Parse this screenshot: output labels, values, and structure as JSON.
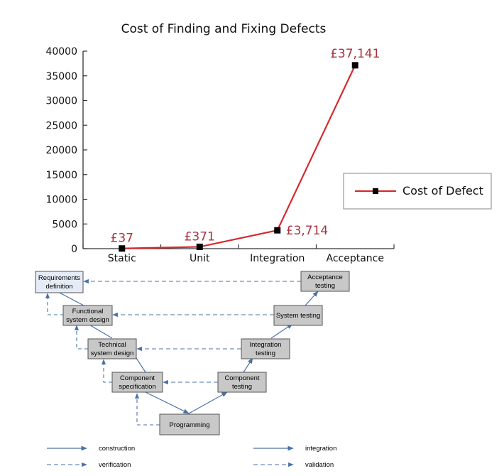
{
  "chart_data": {
    "type": "line",
    "title": "Cost of Finding and Fixing Defects",
    "categories": [
      "Static",
      "Unit",
      "Integration",
      "Acceptance"
    ],
    "series": [
      {
        "name": "Cost of Defect",
        "values": [
          37,
          371,
          3714,
          37141
        ],
        "labels": [
          "£37",
          "£371",
          "£3,714",
          "£37,141"
        ]
      }
    ],
    "ylim": [
      0,
      40000
    ],
    "yticks": [
      0,
      5000,
      10000,
      15000,
      20000,
      25000,
      30000,
      35000,
      40000
    ],
    "legend": "right",
    "grid": false,
    "color": "#d42a2e"
  },
  "v_model": {
    "left_boxes": [
      {
        "line1": "Requirements",
        "line2": "definition"
      },
      {
        "line1": "Functional",
        "line2": "system design"
      },
      {
        "line1": "Technical",
        "line2": "system design"
      },
      {
        "line1": "Component",
        "line2": "specification"
      }
    ],
    "right_boxes": [
      {
        "line1": "Acceptance",
        "line2": "testing"
      },
      {
        "line1": "System testing",
        "line2": ""
      },
      {
        "line1": "Integration",
        "line2": "testing"
      },
      {
        "line1": "Component",
        "line2": "testing"
      }
    ],
    "bottom_box": "Programming",
    "key": {
      "construction": "construction",
      "integration": "integration",
      "verification": "verification",
      "validation": "validation"
    },
    "arrow_color": "#4a72a8",
    "left_fill": "#e6ecf7",
    "box_fill": "#c8c8c8"
  }
}
